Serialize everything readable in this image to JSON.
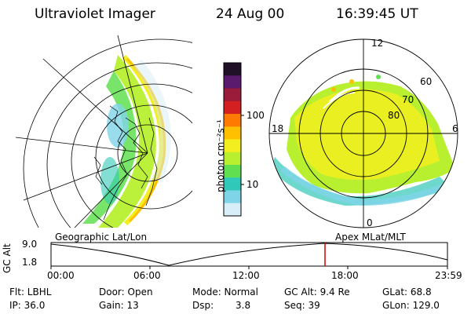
{
  "header": {
    "instrument": "Ultraviolet Imager",
    "date": "24 Aug 00",
    "time": "16:39:45 UT"
  },
  "colorbar": {
    "unit_label": "photon cm⁻²s⁻¹",
    "ticks": [
      "100",
      "10"
    ],
    "scale": "log",
    "colors_top_to_bottom": [
      "#201028",
      "#5a1a6e",
      "#9a1b3a",
      "#d42020",
      "#ff7a00",
      "#ffc000",
      "#f2ee20",
      "#b8f030",
      "#60e050",
      "#30c8b8",
      "#7fd4e8",
      "#d8eef8"
    ]
  },
  "left_map": {
    "label": "Geographic Lat/Lon"
  },
  "right_map": {
    "label": "Apex MLat/MLT",
    "mlt_labels": {
      "top": "12",
      "left": "18",
      "right": "6",
      "bottom": "0"
    },
    "lat_labels": [
      "60",
      "70",
      "80"
    ]
  },
  "altitude_plot": {
    "ylabel": "GC Alt",
    "yticks": [
      "9.0",
      "1.8"
    ],
    "xticks": [
      "00:00",
      "06:00",
      "12:00",
      "18:00",
      "23:59"
    ],
    "marker_color": "#d00000"
  },
  "info": {
    "filter": "Flt: LBHL",
    "ip": "IP: 36.0",
    "door": "Door: Open",
    "gain": "Gain: 13",
    "mode": "Mode: Normal",
    "dsp_label": "Dsp:",
    "dsp_value": "3.8",
    "gc_alt": "GC Alt: 9.4 Re",
    "seq": "Seq: 39",
    "glat": "GLat: 68.8",
    "glon": "GLon: 129.0"
  }
}
